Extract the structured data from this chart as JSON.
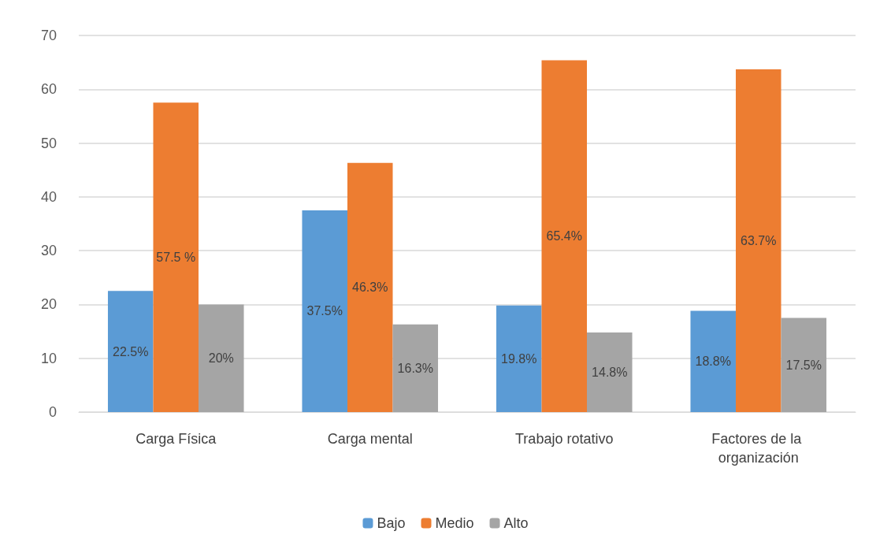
{
  "chart_data": {
    "type": "bar",
    "categories": [
      "Carga Física",
      "Carga mental",
      "Trabajo rotativo",
      "Factores de la organización"
    ],
    "series": [
      {
        "name": "Bajo",
        "color": "#5b9bd5",
        "values": [
          22.5,
          37.5,
          19.8,
          18.8
        ],
        "value_labels": [
          "22.5%",
          "37.5%",
          "19.8%",
          "18.8%"
        ]
      },
      {
        "name": "Medio",
        "color": "#ed7d31",
        "values": [
          57.5,
          46.3,
          65.4,
          63.7
        ],
        "value_labels": [
          "57.5 %",
          "46.3%",
          "65.4%",
          "63.7%"
        ]
      },
      {
        "name": "Alto",
        "color": "#a5a5a5",
        "values": [
          20,
          16.3,
          14.8,
          17.5
        ],
        "value_labels": [
          "20%",
          "16.3%",
          "14.8%",
          "17.5%"
        ]
      }
    ],
    "ylim": [
      0,
      70
    ],
    "yticks": [
      0,
      10,
      20,
      30,
      40,
      50,
      60,
      70
    ],
    "grid": "y",
    "legend": "bottom"
  }
}
